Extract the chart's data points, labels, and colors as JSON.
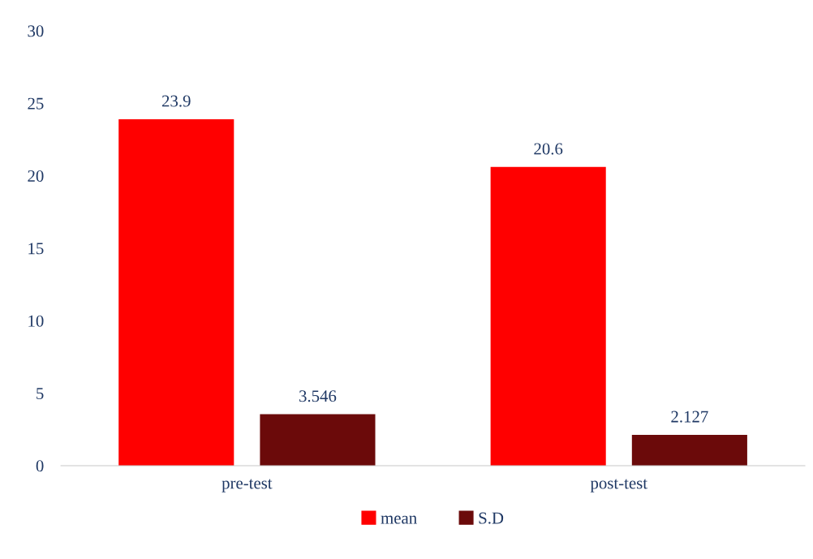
{
  "chart_data": {
    "type": "bar",
    "categories": [
      "pre-test",
      "post-test"
    ],
    "series": [
      {
        "name": "mean",
        "color": "#ff0000",
        "values": [
          23.9,
          20.6
        ]
      },
      {
        "name": "S.D",
        "color": "#6b0a0a",
        "values": [
          3.546,
          2.127
        ]
      }
    ],
    "ylim": [
      0,
      30
    ],
    "yticks": [
      0,
      5,
      10,
      15,
      20,
      25,
      30
    ],
    "data_labels": true,
    "grid": false,
    "legend": "bottom"
  }
}
